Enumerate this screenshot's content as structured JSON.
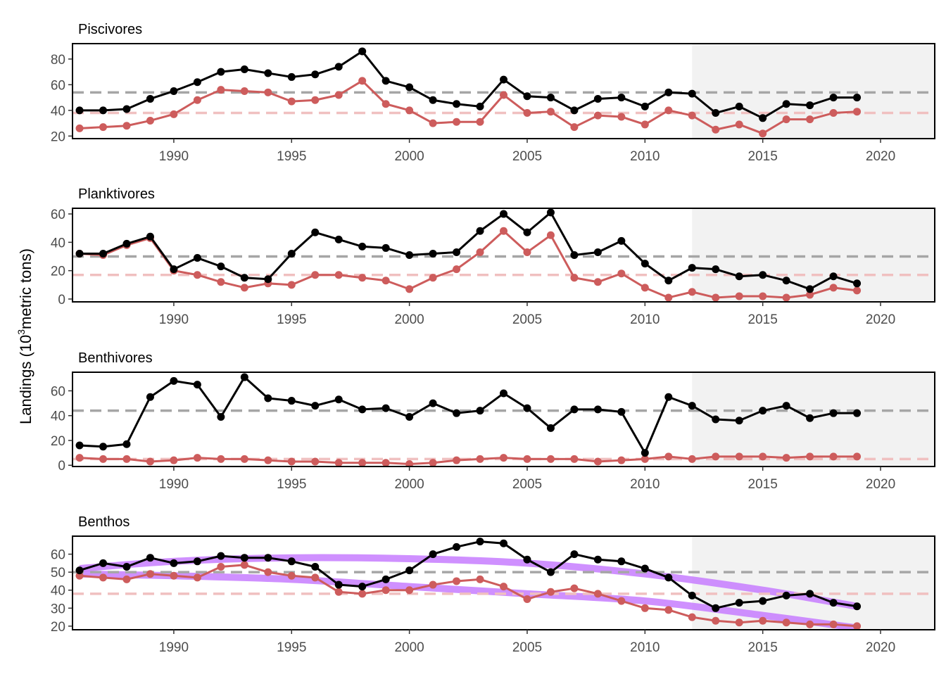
{
  "chart_data": {
    "type": "line",
    "ylabel": "Landings (10^3 metric tons)",
    "ylabel_parts": {
      "pre": "Landings (10",
      "sup": "3",
      "post": "metric tons)"
    },
    "xlim": [
      1985.7,
      2022.3
    ],
    "shaded_region": [
      2012,
      2022.3
    ],
    "colors": {
      "total": "#000000",
      "commercial": "#cd5c5c",
      "mean_total": "#a6a6a6",
      "mean_commercial": "#f0c0c0",
      "trend": "#c77cff",
      "shade": "#f2f2f2"
    },
    "years": [
      1986,
      1987,
      1988,
      1989,
      1990,
      1991,
      1992,
      1993,
      1994,
      1995,
      1996,
      1997,
      1998,
      1999,
      2000,
      2001,
      2002,
      2003,
      2004,
      2005,
      2006,
      2007,
      2008,
      2009,
      2010,
      2011,
      2012,
      2013,
      2014,
      2015,
      2016,
      2017,
      2018,
      2019
    ],
    "x_ticks": [
      1990,
      1995,
      2000,
      2005,
      2010,
      2015,
      2020
    ],
    "panels": [
      {
        "title": "Piscivores",
        "ylim": [
          18,
          92
        ],
        "y_ticks": [
          20,
          40,
          60,
          80
        ],
        "series": [
          {
            "values": [
              40,
              40,
              41,
              49,
              55,
              62,
              70,
              72,
              69,
              66,
              68,
              74,
              86,
              63,
              58,
              48,
              45,
              43,
              64,
              51,
              50,
              40,
              49,
              50,
              43,
              54,
              53,
              38,
              43,
              34,
              45,
              44,
              50,
              50
            ]
          },
          {
            "values": [
              26,
              27,
              28,
              32,
              37,
              48,
              56,
              55,
              54,
              47,
              48,
              52,
              63,
              45,
              40,
              30,
              31,
              31,
              52,
              38,
              39,
              27,
              36,
              35,
              29,
              40,
              36,
              25,
              29,
              22,
              33,
              33,
              38,
              39
            ]
          }
        ],
        "mean_lines": [
          54,
          38
        ],
        "trend_lines": []
      },
      {
        "title": "Planktivores",
        "ylim": [
          -2,
          64
        ],
        "y_ticks": [
          0,
          20,
          40,
          60
        ],
        "series": [
          {
            "values": [
              32,
              32,
              39,
              44,
              21,
              29,
              23,
              15,
              14,
              32,
              47,
              42,
              37,
              36,
              31,
              32,
              33,
              48,
              60,
              47,
              61,
              31,
              33,
              41,
              25,
              13,
              22,
              21,
              16,
              17,
              13,
              7,
              16,
              11
            ]
          },
          {
            "values": [
              32,
              31,
              38,
              43,
              20,
              17,
              12,
              8,
              11,
              10,
              17,
              17,
              15,
              13,
              7,
              15,
              21,
              33,
              48,
              33,
              45,
              15,
              12,
              18,
              8,
              1,
              5,
              1,
              2,
              2,
              1,
              3,
              8,
              6
            ]
          }
        ],
        "mean_lines": [
          30,
          17
        ],
        "trend_lines": []
      },
      {
        "title": "Benthivores",
        "ylim": [
          -1,
          75
        ],
        "y_ticks": [
          0,
          20,
          40,
          60
        ],
        "series": [
          {
            "values": [
              16,
              15,
              17,
              55,
              68,
              65,
              39,
              71,
              54,
              52,
              48,
              53,
              45,
              46,
              39,
              50,
              42,
              44,
              58,
              46,
              30,
              45,
              45,
              43,
              10,
              55,
              48,
              37,
              36,
              44,
              48,
              38,
              42,
              42
            ]
          },
          {
            "values": [
              6,
              5,
              5,
              3,
              4,
              6,
              5,
              5,
              4,
              3,
              3,
              2,
              2,
              2,
              1,
              2,
              4,
              5,
              6,
              5,
              5,
              5,
              3,
              4,
              5,
              7,
              5,
              7,
              7,
              7,
              6,
              7,
              7,
              7
            ]
          }
        ],
        "mean_lines": [
          44,
          5
        ],
        "trend_lines": []
      },
      {
        "title": "Benthos",
        "ylim": [
          18,
          70
        ],
        "y_ticks": [
          20,
          30,
          40,
          50,
          60
        ],
        "series": [
          {
            "values": [
              51,
              55,
              53,
              58,
              55,
              56,
              59,
              58,
              58,
              56,
              53,
              43,
              42,
              46,
              51,
              60,
              64,
              67,
              66,
              57,
              50,
              60,
              57,
              56,
              52,
              47,
              37,
              30,
              33,
              34,
              37,
              38,
              33,
              31
            ]
          },
          {
            "values": [
              48,
              47,
              46,
              49,
              48,
              47,
              53,
              54,
              50,
              48,
              47,
              39,
              38,
              40,
              40,
              43,
              45,
              46,
              42,
              35,
              39,
              41,
              38,
              34,
              30,
              29,
              25,
              23,
              22,
              23,
              22,
              21,
              21,
              20
            ]
          }
        ],
        "mean_lines": [
          50,
          38
        ],
        "trend_lines": [
          {
            "x": [
              1986,
              1990,
              1995,
              2000,
              2005,
              2010,
              2015,
              2019
            ],
            "values": [
              52,
              56,
              58,
              57.5,
              55,
              49,
              40,
              31
            ]
          },
          {
            "x": [
              1986,
              1990,
              1995,
              2000,
              2005,
              2010,
              2015,
              2019
            ],
            "values": [
              49,
              48,
              46,
              42,
              38,
              34,
              26,
              19
            ]
          }
        ]
      }
    ]
  }
}
